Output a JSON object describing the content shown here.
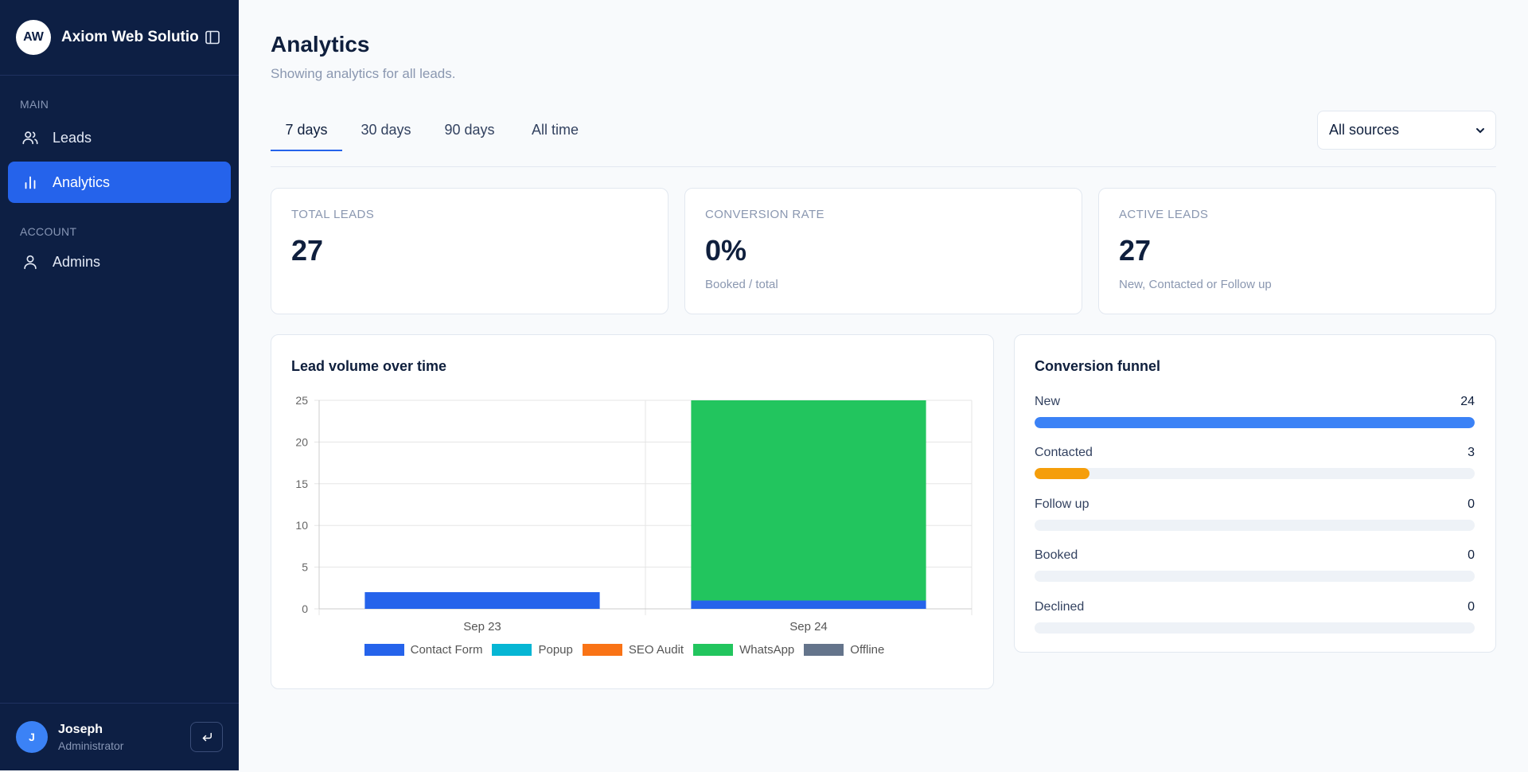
{
  "brand": {
    "initials": "AW",
    "name": "Axiom Web Solutions"
  },
  "nav": {
    "main_section": "MAIN",
    "account_section": "ACCOUNT",
    "items": [
      {
        "label": "Leads",
        "icon": "users-icon"
      },
      {
        "label": "Analytics",
        "icon": "bar-chart-icon",
        "active": true
      },
      {
        "label": "Admins",
        "icon": "user-icon"
      }
    ]
  },
  "user": {
    "initial": "J",
    "name": "Joseph",
    "role": "Administrator"
  },
  "page": {
    "title": "Analytics",
    "subtitle": "Showing analytics for all leads."
  },
  "tabs": [
    {
      "label": "7 days",
      "active": true
    },
    {
      "label": "30 days"
    },
    {
      "label": "90 days"
    },
    {
      "label": "All time"
    }
  ],
  "source_filter": {
    "selected": "All sources"
  },
  "stats": [
    {
      "label": "TOTAL LEADS",
      "value": "27",
      "caption": ""
    },
    {
      "label": "CONVERSION RATE",
      "value": "0%",
      "caption": "Booked / total"
    },
    {
      "label": "ACTIVE LEADS",
      "value": "27",
      "caption": "New, Contacted or Follow up"
    }
  ],
  "lead_volume": {
    "title": "Lead volume over time"
  },
  "funnel": {
    "title": "Conversion funnel",
    "max": 24,
    "rows": [
      {
        "label": "New",
        "value": 24,
        "color": "#3b82f6"
      },
      {
        "label": "Contacted",
        "value": 3,
        "color": "#f59e0b"
      },
      {
        "label": "Follow up",
        "value": 0,
        "color": "#8b5cf6"
      },
      {
        "label": "Booked",
        "value": 0,
        "color": "#22c55e"
      },
      {
        "label": "Declined",
        "value": 0,
        "color": "#ef4444"
      }
    ]
  },
  "chart_data": {
    "type": "bar",
    "stacked": true,
    "categories": [
      "Sep 23",
      "Sep 24"
    ],
    "series": [
      {
        "name": "Contact Form",
        "color": "#2563eb",
        "values": [
          2,
          1
        ]
      },
      {
        "name": "Popup",
        "color": "#06b6d4",
        "values": [
          0,
          0
        ]
      },
      {
        "name": "SEO Audit",
        "color": "#f97316",
        "values": [
          0,
          0
        ]
      },
      {
        "name": "WhatsApp",
        "color": "#22c55e",
        "values": [
          0,
          24
        ]
      },
      {
        "name": "Offline",
        "color": "#64748b",
        "values": [
          0,
          0
        ]
      }
    ],
    "ylim": [
      0,
      25
    ],
    "yticks": [
      0,
      5,
      10,
      15,
      20,
      25
    ],
    "grid": true,
    "legend": "bottom"
  }
}
